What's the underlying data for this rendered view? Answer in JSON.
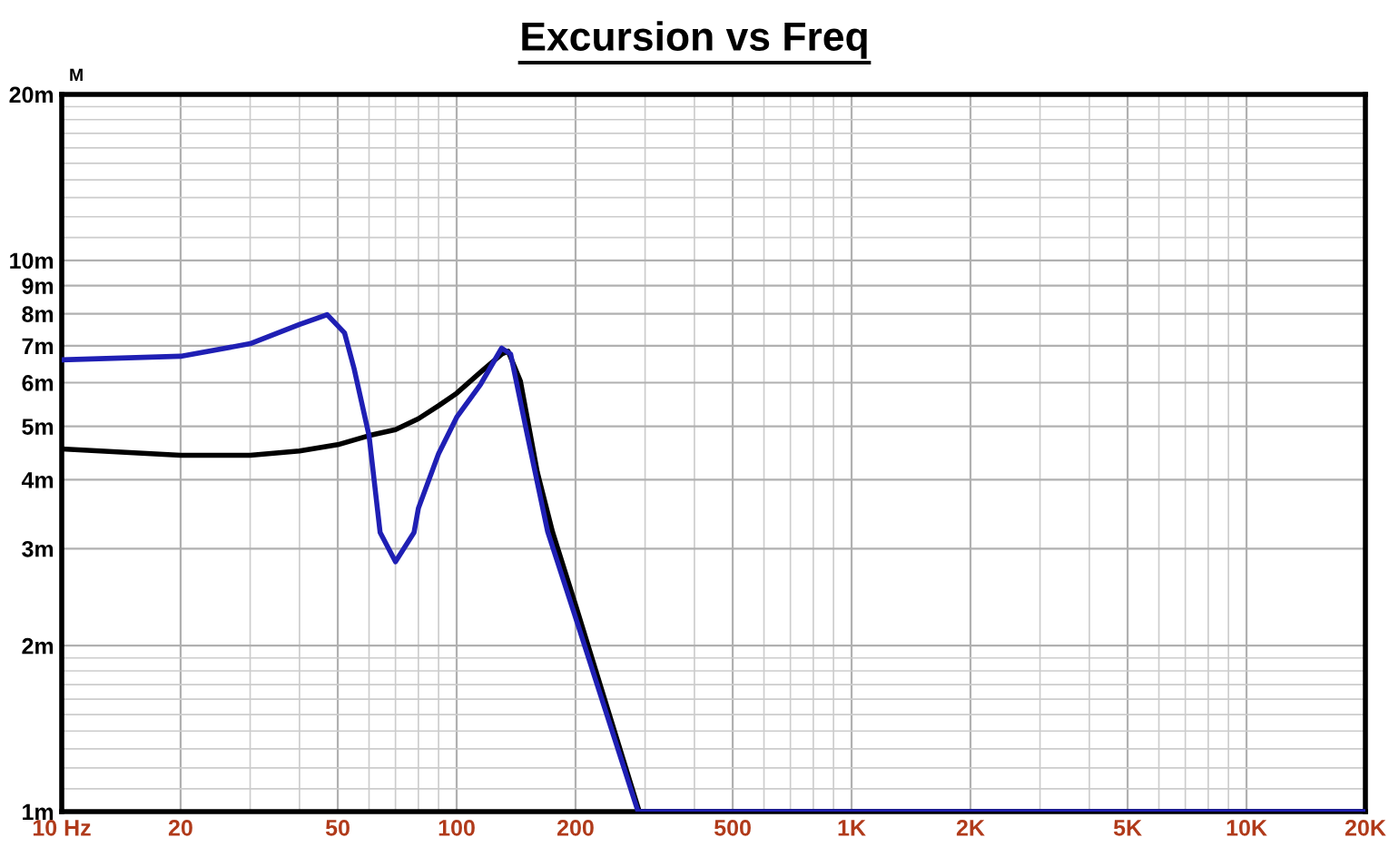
{
  "chart_data": {
    "type": "line",
    "title": "Excursion vs Freq",
    "ylabel": "M",
    "log": "xy",
    "grid": true,
    "xlim": [
      10,
      20000
    ],
    "ylim": [
      1,
      20
    ],
    "xticks": [
      {
        "value": 10,
        "label": "10 Hz"
      },
      20,
      50,
      100,
      200,
      500,
      {
        "value": 1000,
        "label": "1K"
      },
      {
        "value": 2000,
        "label": "2K"
      },
      {
        "value": 5000,
        "label": "5K"
      },
      {
        "value": 10000,
        "label": "10K"
      },
      {
        "value": 20000,
        "label": "20K"
      }
    ],
    "yticks": [
      {
        "value": 1,
        "label": "1m"
      },
      {
        "value": 2,
        "label": "2m"
      },
      {
        "value": 3,
        "label": "3m"
      },
      {
        "value": 4,
        "label": "4m"
      },
      {
        "value": 5,
        "label": "5m"
      },
      {
        "value": 6,
        "label": "6m"
      },
      {
        "value": 7,
        "label": "7m"
      },
      {
        "value": 8,
        "label": "8m"
      },
      {
        "value": 9,
        "label": "9m"
      },
      {
        "value": 10,
        "label": "10m"
      },
      {
        "value": 20,
        "label": "20m"
      }
    ],
    "series": [
      {
        "color": "#000000",
        "x": [
          10,
          20,
          30,
          40,
          50,
          60,
          70,
          80,
          90,
          100,
          115,
          130,
          135,
          145,
          160,
          175,
          200,
          290,
          20000
        ],
        "values": [
          4.55,
          4.43,
          4.43,
          4.51,
          4.63,
          4.81,
          4.93,
          5.16,
          5.45,
          5.74,
          6.27,
          6.76,
          6.84,
          6.04,
          4.13,
          3.21,
          2.37,
          1,
          1
        ]
      },
      {
        "color": "#1f1fb4",
        "x": [
          10,
          20,
          30,
          40,
          47,
          52,
          55,
          60,
          64,
          70,
          78,
          80,
          90,
          100,
          115,
          130,
          137,
          150,
          170,
          200,
          288,
          20000
        ],
        "values": [
          6.6,
          6.7,
          7.06,
          7.65,
          7.97,
          7.39,
          6.36,
          4.81,
          3.21,
          2.84,
          3.21,
          3.55,
          4.46,
          5.19,
          5.96,
          6.93,
          6.76,
          4.93,
          3.22,
          2.25,
          1,
          1
        ]
      }
    ]
  }
}
